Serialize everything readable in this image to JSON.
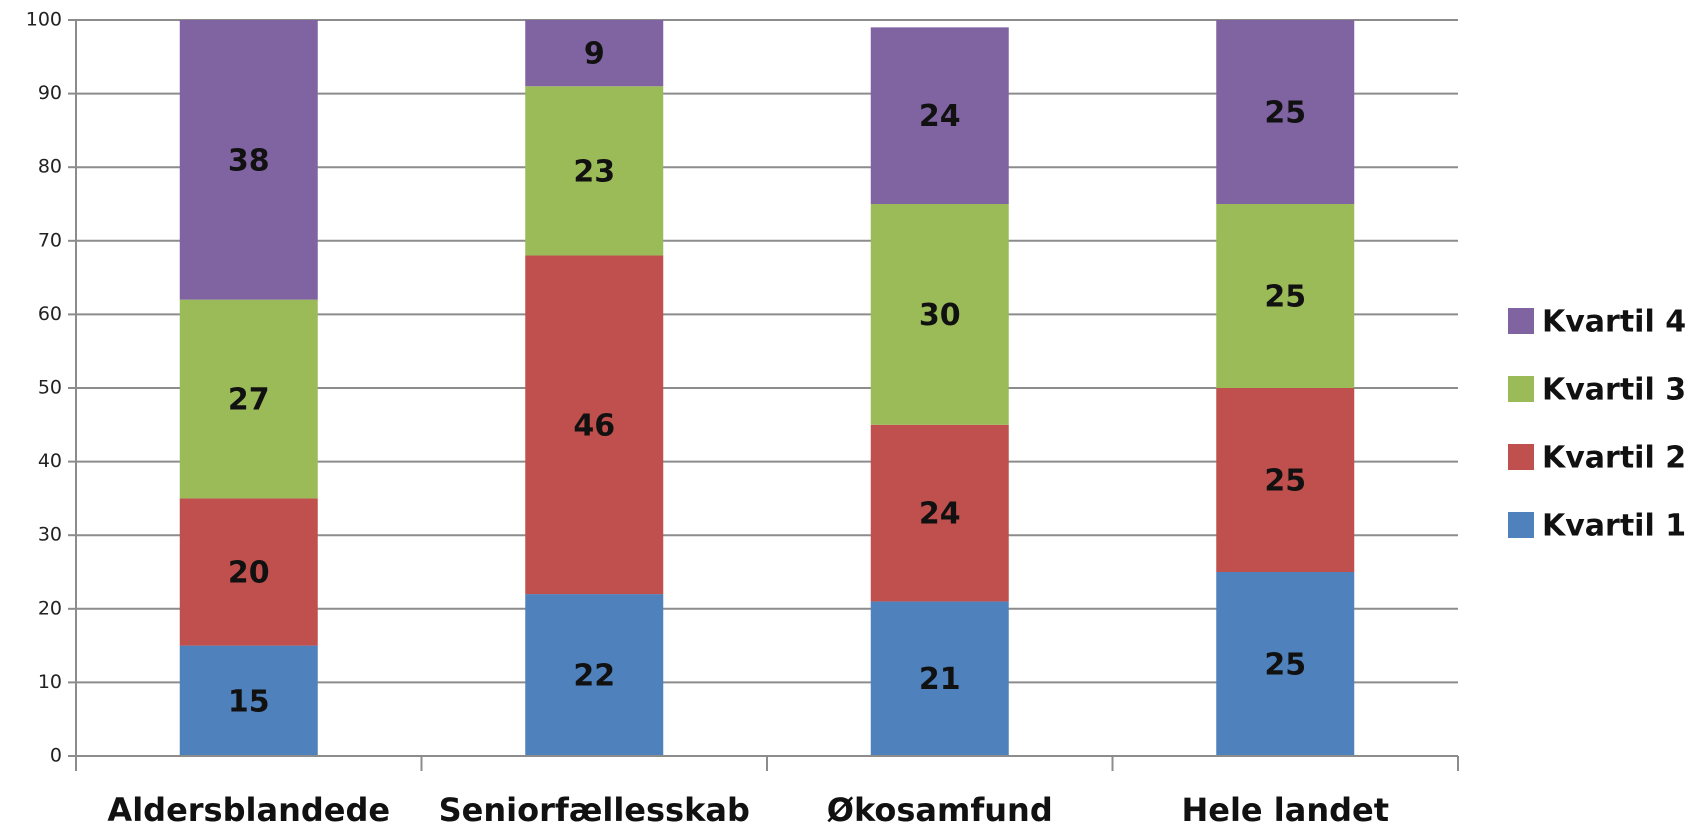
{
  "chart_data": {
    "type": "stacked_bar",
    "categories": [
      "Aldersblandede",
      "Seniorfællesskab",
      "Økosamfund",
      "Hele landet"
    ],
    "series": [
      {
        "name": "Kvartil 1",
        "color": "#4f81bd",
        "values": [
          15,
          22,
          21,
          25
        ]
      },
      {
        "name": "Kvartil 2",
        "color": "#c0504d",
        "values": [
          20,
          46,
          24,
          25
        ]
      },
      {
        "name": "Kvartil 3",
        "color": "#9bbb59",
        "values": [
          27,
          23,
          30,
          25
        ]
      },
      {
        "name": "Kvartil 4",
        "color": "#8064a2",
        "values": [
          38,
          9,
          24,
          25
        ]
      }
    ],
    "ylim": [
      0,
      100
    ],
    "yticks": [
      0,
      10,
      20,
      30,
      40,
      50,
      60,
      70,
      80,
      90,
      100
    ],
    "grid": true,
    "legend": "right"
  }
}
